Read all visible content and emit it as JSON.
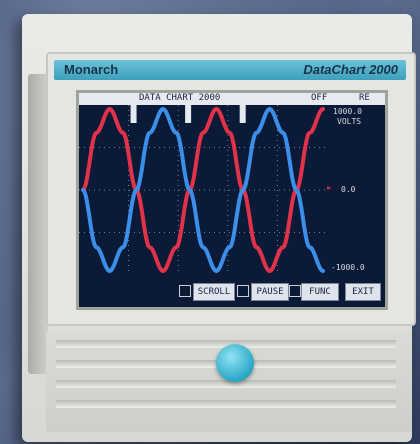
{
  "device": {
    "brand": "Monarch",
    "model": "DataChart 2000"
  },
  "screen": {
    "status_title": "DATA CHART 2000",
    "status_mode": "OFF",
    "status_rate": "RE",
    "scale_top": "1000.0",
    "scale_top_unit": "VOLTS",
    "scale_mid": "0.0",
    "scale_bottom": "-1000.0",
    "softkeys": [
      "SCROLL",
      "PAUSE",
      "FUNC",
      "EXIT"
    ]
  },
  "colors": {
    "trace_red": "#e0334a",
    "trace_blue": "#3c8fe8",
    "screen_bg": "#0b1a36",
    "brand_strip": "#4aa9c6",
    "knob": "#2aa6c6"
  },
  "chart_data": {
    "type": "line",
    "title": "",
    "xlabel": "",
    "ylabel": "",
    "ylim": [
      -1000,
      1000
    ],
    "x": [
      0,
      0.5,
      1,
      1.5,
      2,
      2.5,
      3,
      3.5,
      4,
      4.5,
      5,
      5.5,
      6,
      6.5,
      7,
      7.5,
      8,
      8.5,
      9
    ],
    "series": [
      {
        "color": "#e0334a",
        "values": [
          0,
          707,
          1000,
          707,
          0,
          -707,
          -1000,
          -707,
          0,
          707,
          1000,
          707,
          0,
          -707,
          -1000,
          -707,
          0,
          707,
          1000
        ]
      },
      {
        "color": "#3c8fe8",
        "values": [
          0,
          -707,
          -1000,
          -707,
          0,
          707,
          1000,
          707,
          0,
          -707,
          -1000,
          -707,
          0,
          707,
          1000,
          707,
          0,
          -707,
          -1000
        ]
      }
    ]
  }
}
